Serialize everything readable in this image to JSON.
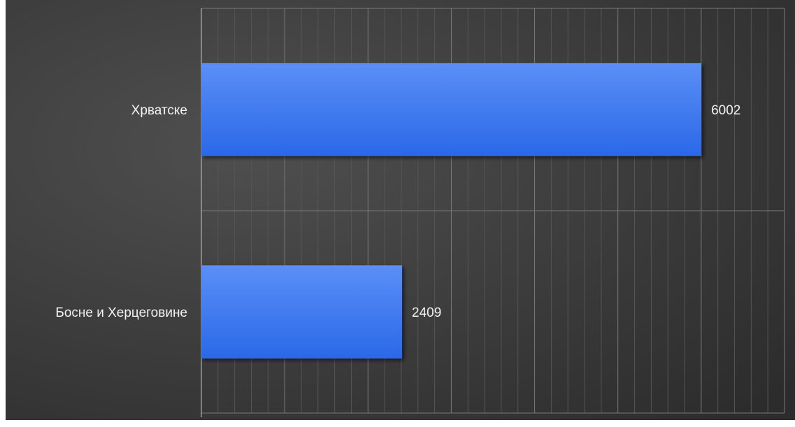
{
  "chart_data": {
    "type": "bar",
    "orientation": "horizontal",
    "categories": [
      "Хрватске",
      "Босне и Херцеговине"
    ],
    "values": [
      6002,
      2409
    ],
    "title": "",
    "xlabel": "",
    "ylabel": "",
    "xlim": [
      0,
      7000
    ],
    "grid": true,
    "legend": "none",
    "data_labels": true
  },
  "colors": {
    "background_light": "#4f4f4f",
    "background_dark": "#2c2c2c",
    "bar_top": "#5b8ff7",
    "bar_bottom": "#2a68e8",
    "grid_major": "#7a7a7a",
    "grid_minor": "#555555",
    "text": "#f2f2f2"
  }
}
